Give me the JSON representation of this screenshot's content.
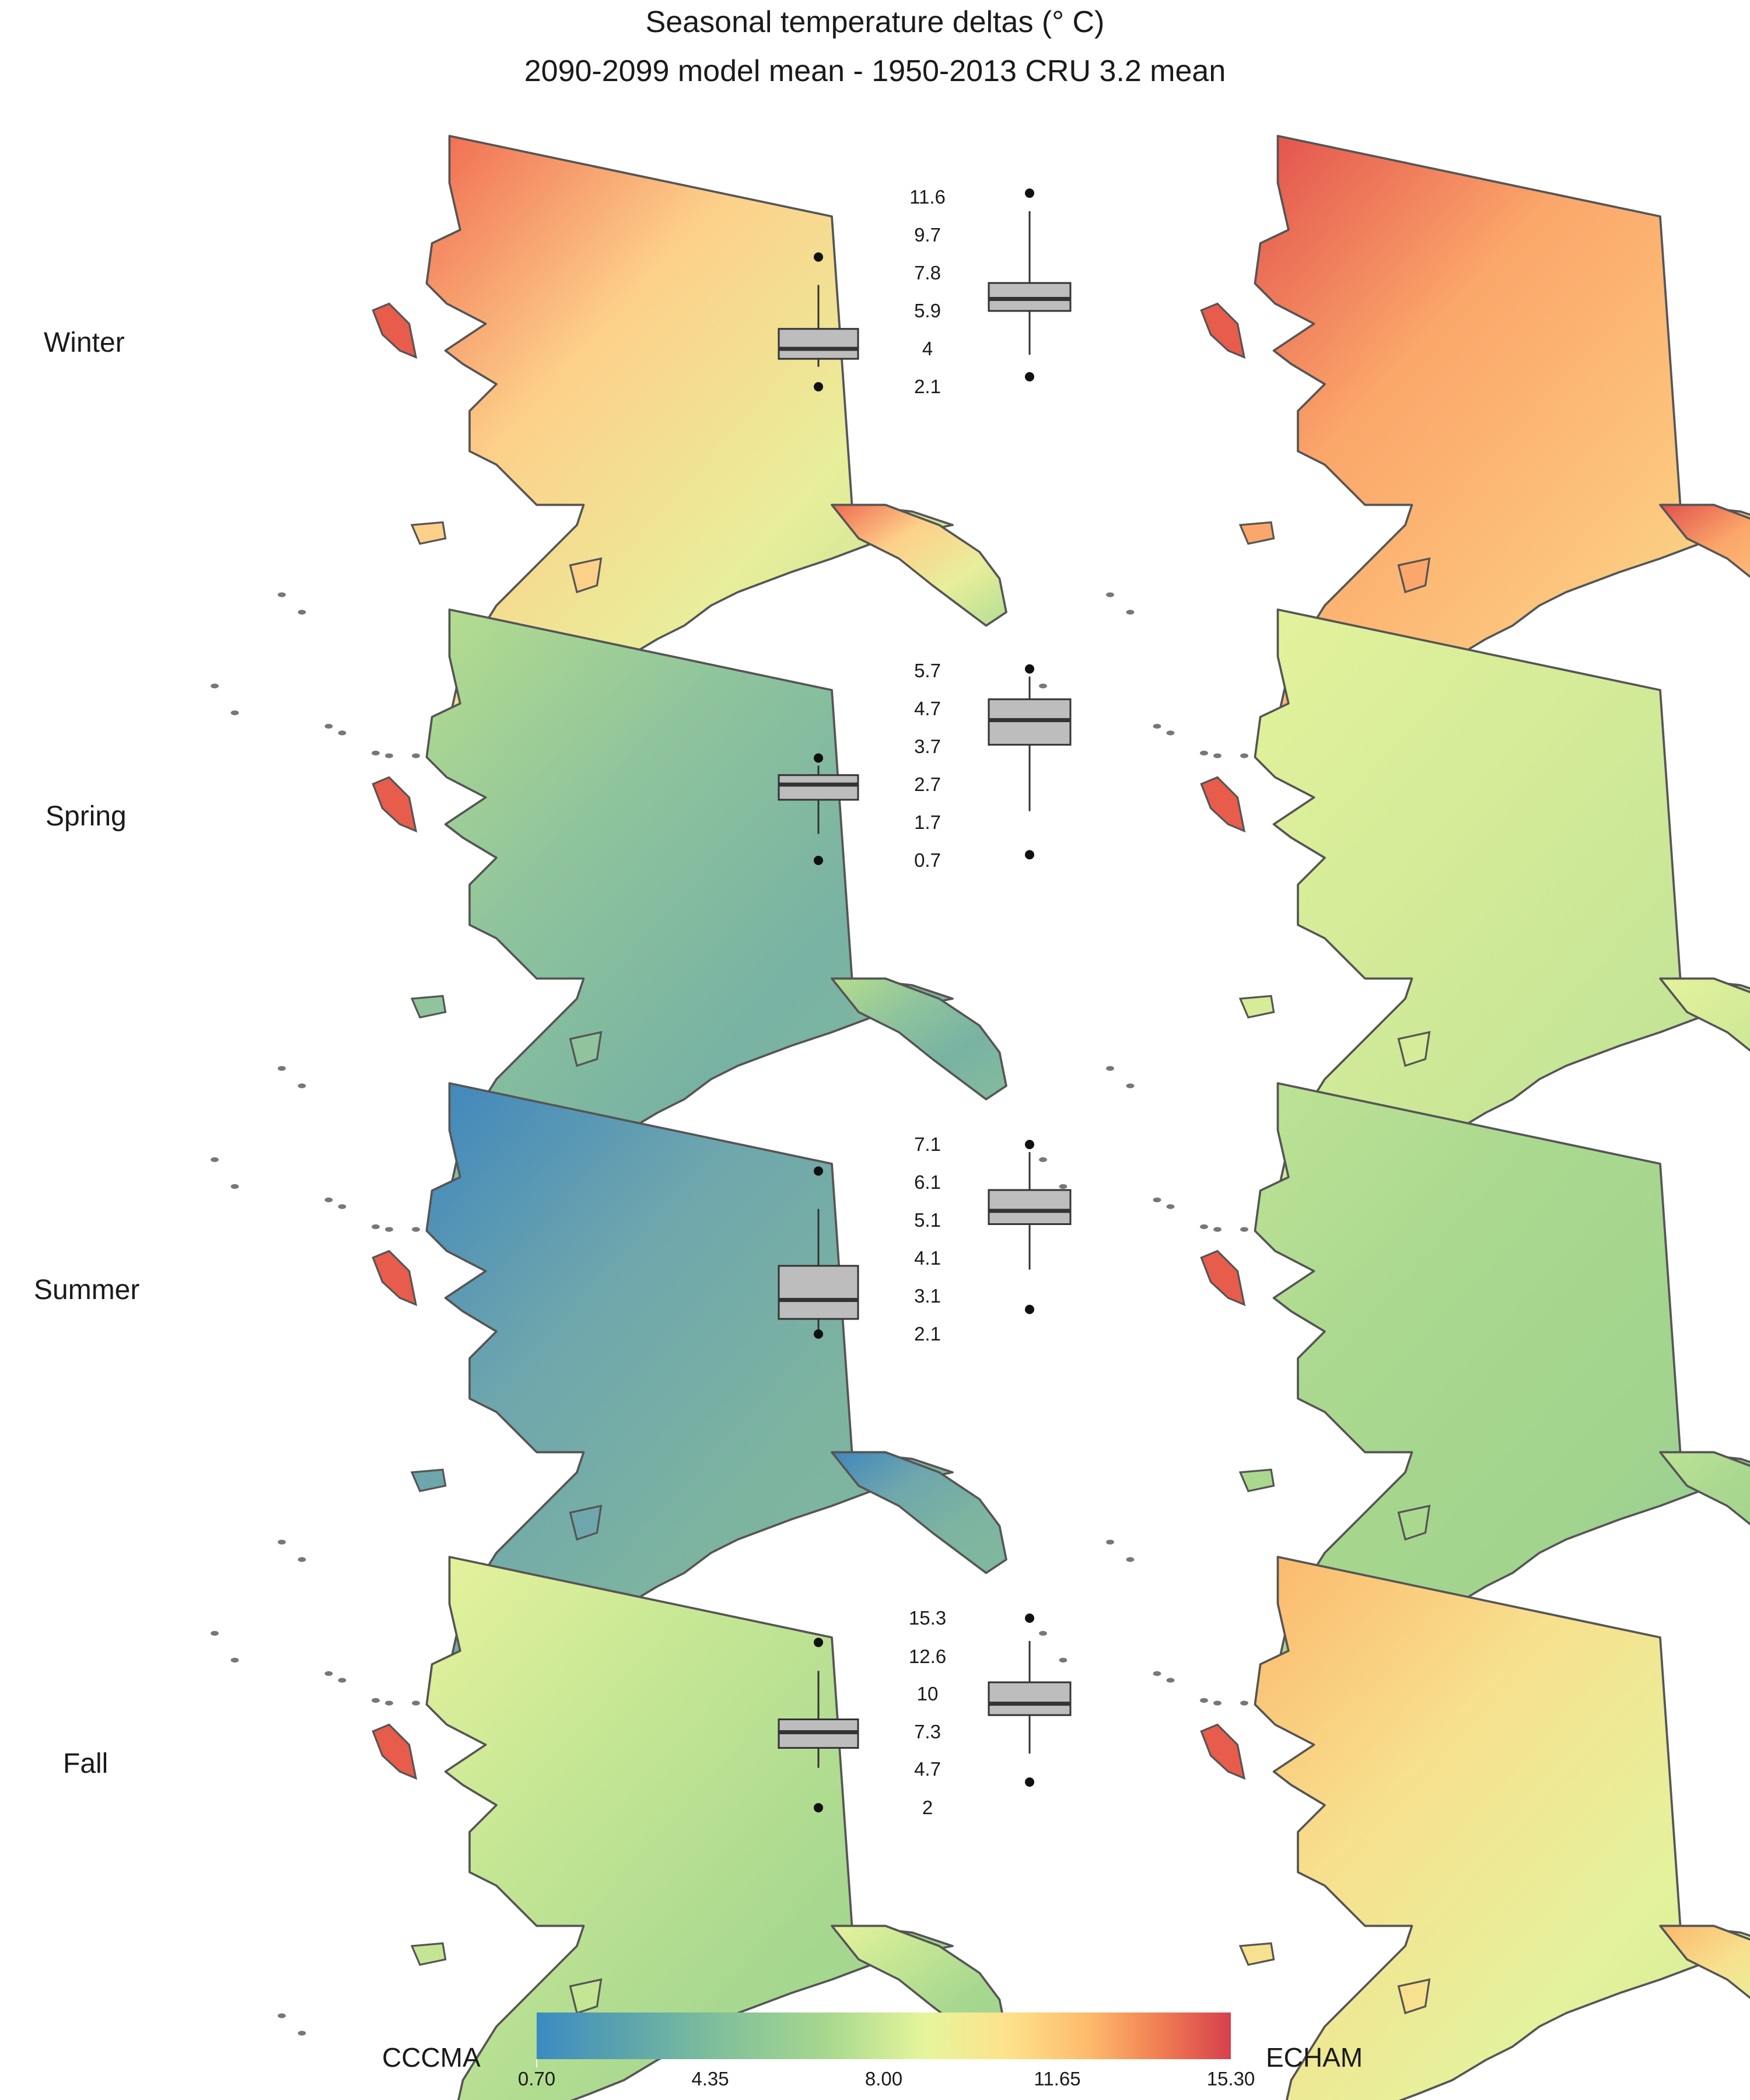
{
  "title": "Seasonal temperature deltas (° C)",
  "subtitle": "2090-2099 model mean - 1950-2013 CRU 3.2 mean",
  "legend": {
    "left_model": "CCCMA",
    "right_model": "ECHAM",
    "scale_min": 0.7,
    "scale_max": 15.3,
    "ticks": [
      "0.70",
      "4.35",
      "8.00",
      "11.65",
      "15.30"
    ],
    "gradient_colors": [
      "#3b8bc2",
      "#7fbf9b",
      "#e6f59c",
      "#fdb86a",
      "#d6404e"
    ]
  },
  "map_colors": {
    "winter_cccma": [
      "#f06a50",
      "#fdd08a",
      "#e8ee9a",
      "#b4de94"
    ],
    "winter_echam": [
      "#e2504c",
      "#fba66a",
      "#fcc47c",
      "#f4e894"
    ],
    "spring_cccma": [
      "#b6de8e",
      "#8fc49c",
      "#78b2a3",
      "#86bc9c"
    ],
    "spring_echam": [
      "#e4f29c",
      "#d6ec98",
      "#c8e697",
      "#b9df92"
    ],
    "summer_cccma": [
      "#3f86bd",
      "#6ea6ad",
      "#7db4a0",
      "#80b89f"
    ],
    "summer_echam": [
      "#bde395",
      "#aad88f",
      "#a2d48e",
      "#8ec89a"
    ],
    "fall_cccma": [
      "#e7f29c",
      "#c4e694",
      "#a8d88f",
      "#9dd28f"
    ],
    "fall_echam": [
      "#fcb86c",
      "#f7e08e",
      "#e4f29c",
      "#c7e694"
    ]
  },
  "chart_data": [
    {
      "type": "box",
      "season": "Winter",
      "ticks": [
        "11.6",
        "9.7",
        "7.8",
        "5.9",
        "4",
        "2.1"
      ],
      "series": [
        {
          "name": "CCCMA",
          "q1": 3.5,
          "median": 4.0,
          "q3": 5.0,
          "whisker_low": 3.1,
          "whisker_high": 7.2,
          "outliers": [
            2.1,
            8.6
          ]
        },
        {
          "name": "ECHAM",
          "q1": 5.9,
          "median": 6.5,
          "q3": 7.3,
          "whisker_low": 3.7,
          "whisker_high": 10.9,
          "outliers": [
            2.6,
            11.8
          ]
        }
      ]
    },
    {
      "type": "box",
      "season": "Spring",
      "ticks": [
        "5.7",
        "4.7",
        "3.7",
        "2.7",
        "1.7",
        "0.7"
      ],
      "series": [
        {
          "name": "CCCMA",
          "q1": 2.3,
          "median": 2.7,
          "q3": 2.95,
          "whisker_low": 1.4,
          "whisker_high": 3.2,
          "outliers": [
            0.7,
            3.4
          ]
        },
        {
          "name": "ECHAM",
          "q1": 3.75,
          "median": 4.4,
          "q3": 4.95,
          "whisker_low": 2.0,
          "whisker_high": 5.55,
          "outliers": [
            0.85,
            5.75
          ]
        }
      ]
    },
    {
      "type": "box",
      "season": "Summer",
      "ticks": [
        "7.1",
        "6.1",
        "5.1",
        "4.1",
        "3.1",
        "2.1"
      ],
      "series": [
        {
          "name": "CCCMA",
          "q1": 2.5,
          "median": 3.0,
          "q3": 3.9,
          "whisker_low": 2.1,
          "whisker_high": 5.4,
          "outliers": [
            2.1,
            6.4
          ]
        },
        {
          "name": "ECHAM",
          "q1": 5.0,
          "median": 5.35,
          "q3": 5.9,
          "whisker_low": 3.8,
          "whisker_high": 6.9,
          "outliers": [
            2.75,
            7.1
          ]
        }
      ]
    },
    {
      "type": "box",
      "season": "Fall",
      "ticks": [
        "15.3",
        "12.6",
        "10",
        "7.3",
        "4.7",
        "2"
      ],
      "series": [
        {
          "name": "CCCMA",
          "q1": 6.2,
          "median": 7.3,
          "q3": 8.2,
          "whisker_low": 4.8,
          "whisker_high": 11.6,
          "outliers": [
            2.0,
            13.6
          ]
        },
        {
          "name": "ECHAM",
          "q1": 8.5,
          "median": 9.3,
          "q3": 10.8,
          "whisker_low": 5.8,
          "whisker_high": 13.7,
          "outliers": [
            3.8,
            15.3
          ]
        }
      ]
    }
  ]
}
